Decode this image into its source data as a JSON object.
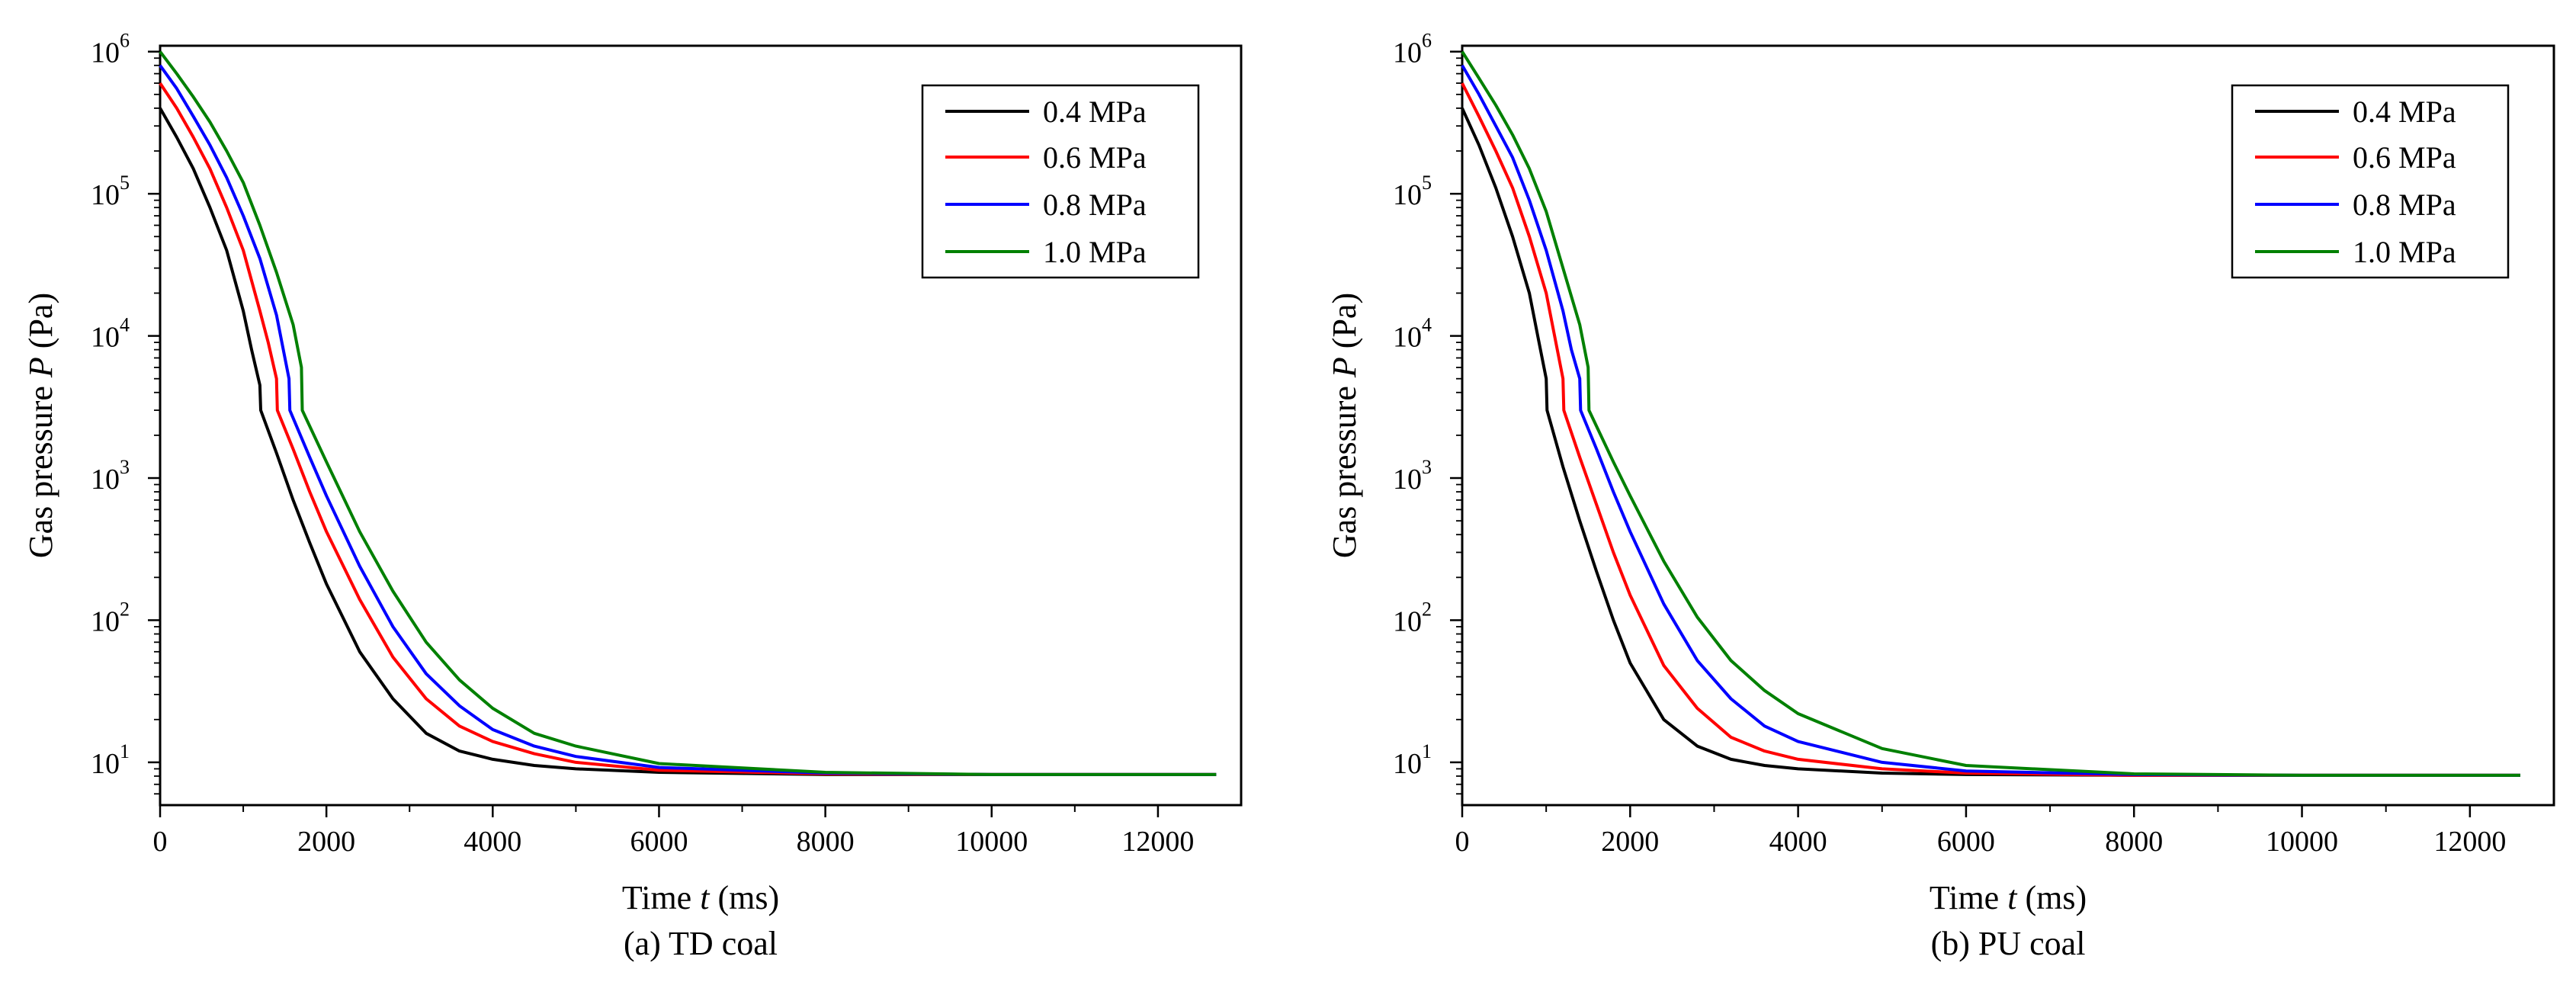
{
  "chart_data": [
    {
      "type": "line",
      "title": "",
      "caption": "(a) TD coal",
      "xlabel": {
        "prefix": "Time ",
        "var": "t",
        "suffix": " (ms)"
      },
      "ylabel": {
        "prefix": "Gas pressure ",
        "var": "P",
        "suffix": " (Pa)"
      },
      "xlim": [
        0,
        13000
      ],
      "ylim": [
        5,
        1100000
      ],
      "yscale": "log",
      "grid": false,
      "legend_position": "top-right",
      "x_ticks": [
        0,
        2000,
        4000,
        6000,
        8000,
        10000,
        12000
      ],
      "x_tick_labels": [
        "0",
        "2000",
        "4000",
        "6000",
        "8000",
        "10000",
        "12000"
      ],
      "y_ticks": [
        10,
        100,
        1000,
        10000,
        100000,
        1000000
      ],
      "y_tick_labels": [
        {
          "base": "10",
          "exp": "1"
        },
        {
          "base": "10",
          "exp": "2"
        },
        {
          "base": "10",
          "exp": "3"
        },
        {
          "base": "10",
          "exp": "4"
        },
        {
          "base": "10",
          "exp": "5"
        },
        {
          "base": "10",
          "exp": "6"
        }
      ],
      "series": [
        {
          "name": "0.4 MPa",
          "color": "#000000",
          "x": [
            0,
            200,
            400,
            600,
            800,
            1000,
            1100,
            1200,
            1210,
            1400,
            1600,
            1800,
            2000,
            2400,
            2800,
            3200,
            3600,
            4000,
            4500,
            5000,
            6000,
            8000,
            10000,
            12000,
            12700
          ],
          "y": [
            400000,
            250000,
            150000,
            80000,
            40000,
            15000,
            8000,
            4500,
            3000,
            1500,
            700,
            350,
            180,
            60,
            28,
            16,
            12,
            10.5,
            9.5,
            9,
            8.5,
            8.2,
            8.2,
            8.2,
            8.2
          ]
        },
        {
          "name": "0.6 MPa",
          "color": "#ff0000",
          "x": [
            0,
            200,
            400,
            600,
            800,
            1000,
            1200,
            1300,
            1400,
            1410,
            1600,
            1800,
            2000,
            2400,
            2800,
            3200,
            3600,
            4000,
            4500,
            5000,
            6000,
            8000,
            10000,
            12000,
            12700
          ],
          "y": [
            600000,
            400000,
            250000,
            150000,
            80000,
            40000,
            15000,
            9000,
            5000,
            3000,
            1600,
            800,
            420,
            140,
            55,
            28,
            18,
            14,
            11.5,
            10,
            8.8,
            8.3,
            8.2,
            8.2,
            8.2
          ]
        },
        {
          "name": "0.8 MPa",
          "color": "#0000ff",
          "x": [
            0,
            200,
            400,
            600,
            800,
            1000,
            1200,
            1400,
            1550,
            1560,
            1800,
            2000,
            2400,
            2800,
            3200,
            3600,
            4000,
            4500,
            5000,
            6000,
            8000,
            10000,
            12000,
            12700
          ],
          "y": [
            800000,
            550000,
            350000,
            220000,
            130000,
            70000,
            35000,
            14000,
            5000,
            3000,
            1400,
            750,
            240,
            90,
            42,
            25,
            17,
            13,
            11,
            9.2,
            8.4,
            8.2,
            8.2,
            8.2
          ]
        },
        {
          "name": "1.0 MPa",
          "color": "#008000",
          "x": [
            0,
            200,
            400,
            600,
            800,
            1000,
            1200,
            1400,
            1600,
            1700,
            1710,
            2000,
            2400,
            2800,
            3200,
            3600,
            4000,
            4500,
            5000,
            6000,
            8000,
            10000,
            12000,
            12700
          ],
          "y": [
            1000000,
            700000,
            480000,
            320000,
            200000,
            120000,
            60000,
            28000,
            12000,
            6000,
            3000,
            1300,
            420,
            160,
            70,
            38,
            24,
            16,
            13,
            9.8,
            8.5,
            8.2,
            8.2,
            8.2
          ]
        }
      ]
    },
    {
      "type": "line",
      "title": "",
      "caption": "(b) PU coal",
      "xlabel": {
        "prefix": "Time ",
        "var": "t",
        "suffix": " (ms)"
      },
      "ylabel": {
        "prefix": "Gas pressure ",
        "var": "P",
        "suffix": " (Pa)"
      },
      "xlim": [
        0,
        13000
      ],
      "ylim": [
        5,
        1100000
      ],
      "yscale": "log",
      "grid": false,
      "legend_position": "top-right",
      "x_ticks": [
        0,
        2000,
        4000,
        6000,
        8000,
        10000,
        12000
      ],
      "x_tick_labels": [
        "0",
        "2000",
        "4000",
        "6000",
        "8000",
        "10000",
        "12000"
      ],
      "y_ticks": [
        10,
        100,
        1000,
        10000,
        100000,
        1000000
      ],
      "y_tick_labels": [
        {
          "base": "10",
          "exp": "1"
        },
        {
          "base": "10",
          "exp": "2"
        },
        {
          "base": "10",
          "exp": "3"
        },
        {
          "base": "10",
          "exp": "4"
        },
        {
          "base": "10",
          "exp": "5"
        },
        {
          "base": "10",
          "exp": "6"
        }
      ],
      "series": [
        {
          "name": "0.4 MPa",
          "color": "#000000",
          "x": [
            0,
            200,
            400,
            600,
            800,
            900,
            1000,
            1010,
            1200,
            1400,
            1600,
            1800,
            2000,
            2400,
            2800,
            3200,
            3600,
            4000,
            5000,
            6000,
            8000,
            10000,
            12000,
            12600
          ],
          "y": [
            400000,
            220000,
            110000,
            50000,
            20000,
            10000,
            5000,
            3000,
            1200,
            500,
            220,
            100,
            50,
            20,
            13,
            10.5,
            9.5,
            9,
            8.4,
            8.2,
            8.1,
            8.1,
            8.1,
            8.1
          ]
        },
        {
          "name": "0.6 MPa",
          "color": "#ff0000",
          "x": [
            0,
            200,
            400,
            600,
            800,
            1000,
            1100,
            1200,
            1210,
            1400,
            1600,
            1800,
            2000,
            2400,
            2800,
            3200,
            3600,
            4000,
            5000,
            6000,
            8000,
            10000,
            12000,
            12600
          ],
          "y": [
            600000,
            350000,
            200000,
            110000,
            50000,
            20000,
            10000,
            5000,
            3000,
            1400,
            650,
            300,
            150,
            48,
            24,
            15,
            12,
            10.5,
            9,
            8.4,
            8.1,
            8.1,
            8.1,
            8.1
          ]
        },
        {
          "name": "0.8 MPa",
          "color": "#0000ff",
          "x": [
            0,
            200,
            400,
            600,
            800,
            1000,
            1200,
            1300,
            1400,
            1410,
            1600,
            1800,
            2000,
            2400,
            2800,
            3200,
            3600,
            4000,
            5000,
            6000,
            8000,
            10000,
            12000,
            12600
          ],
          "y": [
            800000,
            500000,
            300000,
            180000,
            90000,
            40000,
            15000,
            8000,
            5000,
            3000,
            1600,
            800,
            420,
            130,
            52,
            28,
            18,
            14,
            10,
            8.7,
            8.2,
            8.1,
            8.1,
            8.1
          ]
        },
        {
          "name": "1.0 MPa",
          "color": "#008000",
          "x": [
            0,
            200,
            400,
            600,
            800,
            1000,
            1200,
            1400,
            1500,
            1510,
            1800,
            2000,
            2400,
            2800,
            3200,
            3600,
            4000,
            5000,
            6000,
            8000,
            10000,
            12000,
            12600
          ],
          "y": [
            1000000,
            650000,
            420000,
            260000,
            150000,
            75000,
            30000,
            12000,
            6000,
            3000,
            1300,
            750,
            260,
            105,
            52,
            32,
            22,
            12.5,
            9.5,
            8.3,
            8.1,
            8.1,
            8.1
          ]
        }
      ]
    }
  ]
}
